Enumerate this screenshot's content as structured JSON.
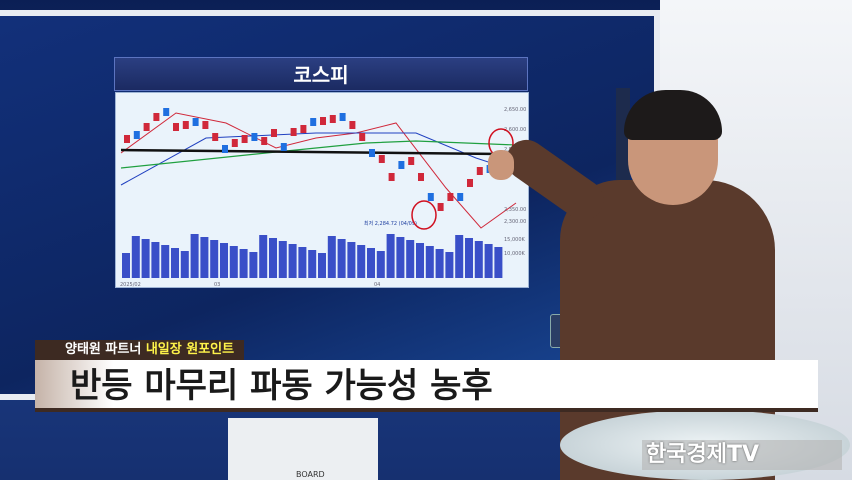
{
  "screen": {
    "title": "코스피"
  },
  "chart_data": {
    "type": "candlestick",
    "title": "코스피",
    "y_ticks": [
      "2,650.00",
      "2,600.00",
      "2,550.00",
      "2,350.00",
      "2,300.00"
    ],
    "volume_ticks": [
      "15,000K",
      "10,000K"
    ],
    "x_ticks": [
      "2025/02",
      "03",
      "04"
    ],
    "annotation": "최저 2,284.72 (04/09)",
    "colors": {
      "up": "#d0283a",
      "down": "#1f6fe0",
      "ma_short": "#d0283a",
      "ma_mid": "#2040c0",
      "ma_long": "#20a040",
      "trend": "#111111",
      "volume": "#3a4fc8"
    }
  },
  "podium": {
    "label": "BOARD"
  },
  "lower_third": {
    "speaker": "양태원 파트너",
    "segment": "내일장 원포인트",
    "headline": "반등 마무리 파동 가능성 농후"
  },
  "logo": "한국경제TV"
}
